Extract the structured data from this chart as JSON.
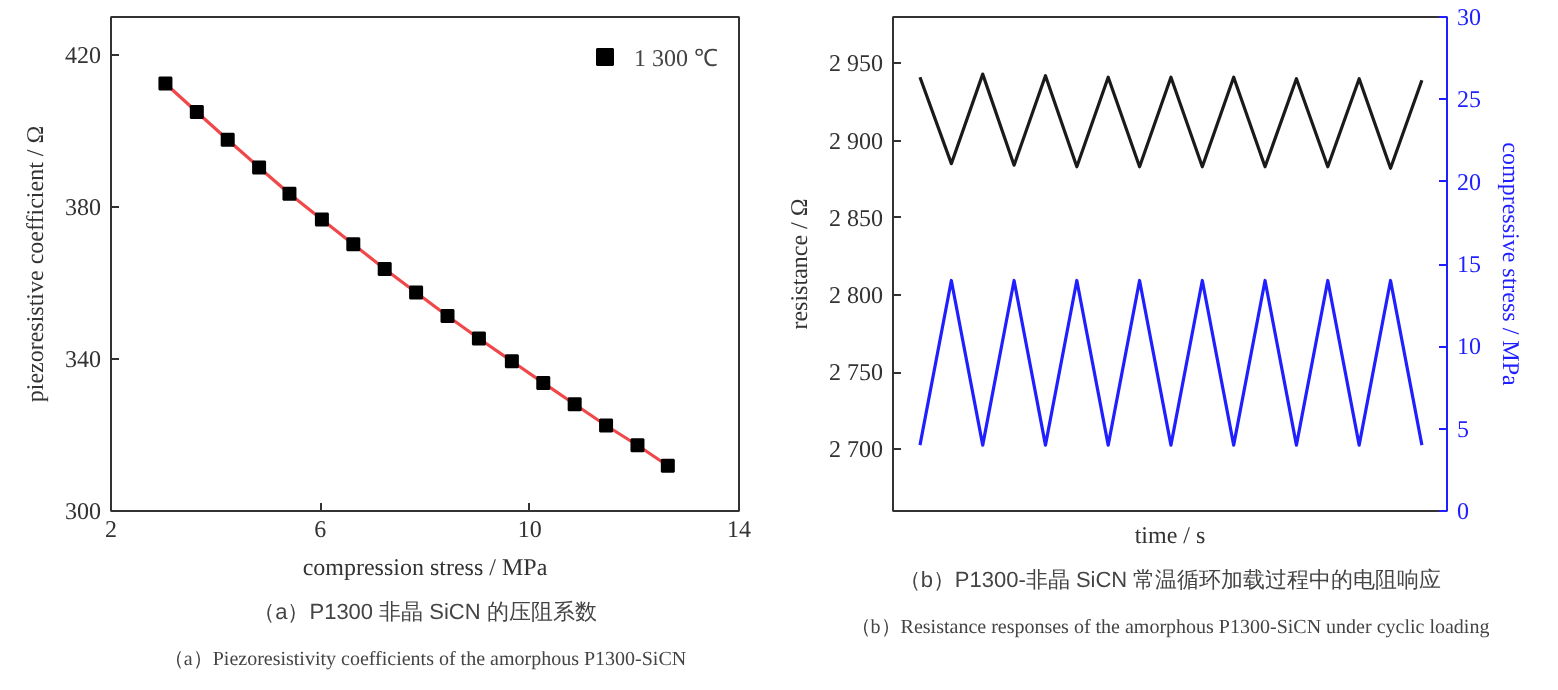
{
  "chart_data": [
    {
      "type": "scatter",
      "title": "（a）P1300 非晶 SiCN 的压阻系数",
      "subtitle": "（a）Piezoresistivity coefficients of the amorphous P1300-SiCN",
      "xlabel": "compression stress / MPa",
      "ylabel": "piezoresistive coefficient / Ω",
      "x": [
        3.04,
        3.64,
        4.23,
        4.83,
        5.41,
        6.03,
        6.63,
        7.23,
        7.83,
        8.43,
        9.03,
        9.66,
        10.26,
        10.86,
        11.46,
        12.06,
        12.64
      ],
      "series": [
        {
          "name": "1 300 ℃",
          "color": "#000000",
          "marker": "square",
          "values": [
            412.5,
            405.0,
            397.7,
            390.4,
            383.5,
            376.7,
            370.2,
            363.7,
            357.5,
            351.3,
            345.4,
            339.4,
            333.7,
            328.1,
            322.5,
            317.3,
            311.9
          ]
        },
        {
          "type": "line",
          "color": "#f0484a",
          "values": [
            412.5,
            405.0,
            397.7,
            390.4,
            383.5,
            376.7,
            370.2,
            363.7,
            357.5,
            351.3,
            345.4,
            339.4,
            333.7,
            328.1,
            322.5,
            317.3,
            311.9
          ]
        }
      ],
      "xlim": [
        2,
        14
      ],
      "xticks": [
        2,
        6,
        10,
        14
      ],
      "ylim": [
        300,
        430
      ],
      "yticks": [
        300,
        340,
        380,
        420
      ],
      "grid": false,
      "legend": "top right"
    },
    {
      "type": "line",
      "title": "（b）P1300-非晶 SiCN 常温循环加载过程中的电阻响应",
      "subtitle": "（b）Resistance responses of the amorphous P1300-SiCN under cyclic loading",
      "xlabel": "time / s",
      "ylabel": "resistance / Ω",
      "y2label": "compressive stress / MPa",
      "categories": [
        null,
        null,
        null,
        null,
        null,
        null,
        null,
        null,
        null,
        null,
        null,
        null,
        null,
        null,
        null,
        null,
        null
      ],
      "series": [
        {
          "color": "#1a1a1a",
          "values": [
            2941,
            2885,
            2943,
            2884,
            2942,
            2883,
            2941,
            2883,
            2941,
            2883,
            2941,
            2883,
            2940,
            2883,
            2940,
            2882,
            2939
          ]
        },
        {
          "color": "#1f1fff",
          "axis": "y2",
          "values": [
            4,
            14,
            4,
            14,
            4,
            14,
            4,
            14,
            4,
            14,
            4,
            14,
            4,
            14,
            4,
            14,
            4
          ]
        }
      ],
      "ylim": [
        2660,
        2980
      ],
      "yticks": [
        {
          "value": 2700,
          "label": "2 700"
        },
        {
          "value": 2750,
          "label": "2 750"
        },
        {
          "value": 2800,
          "label": "2 800"
        },
        {
          "value": 2850,
          "label": "2 850"
        },
        {
          "value": 2900,
          "label": "2 900"
        },
        {
          "value": 2950,
          "label": "2 950"
        }
      ],
      "y2lim": [
        0,
        30
      ],
      "y2ticks": [
        0,
        5,
        10,
        15,
        20,
        25,
        30
      ],
      "grid": false,
      "legend": false
    }
  ]
}
